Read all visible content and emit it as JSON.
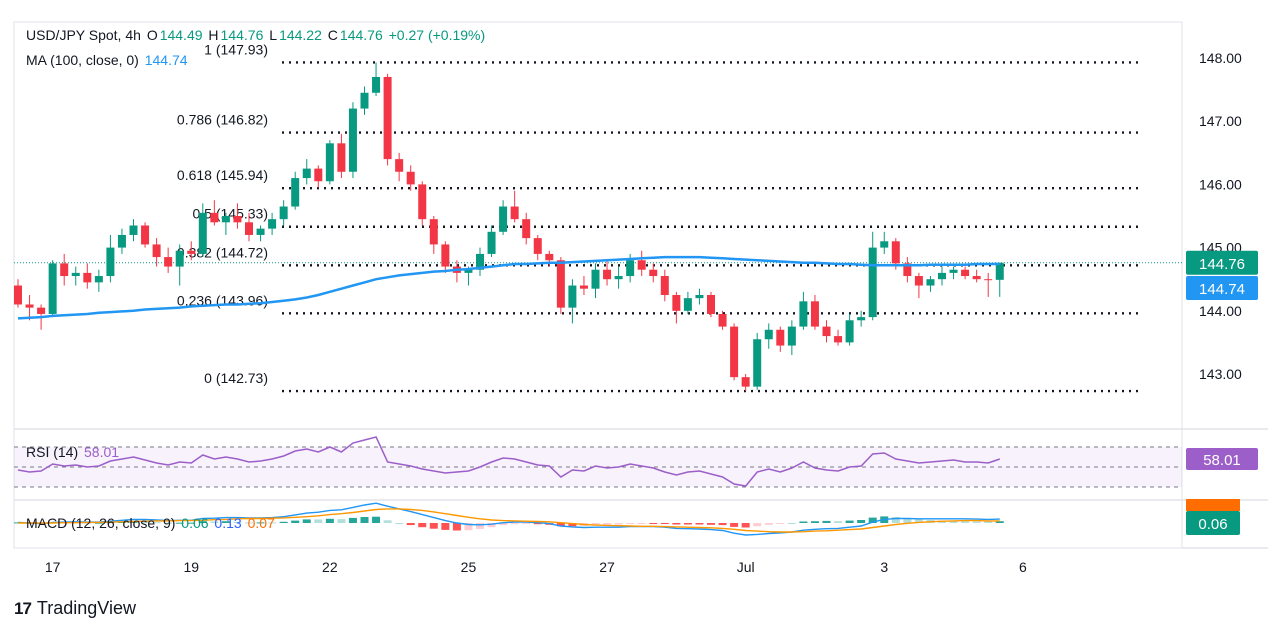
{
  "header": {
    "symbol": "USD/JPY Spot, 4h",
    "ohlc": [
      {
        "k": "O",
        "v": "144.49"
      },
      {
        "k": "H",
        "v": "144.76"
      },
      {
        "k": "L",
        "v": "144.22"
      },
      {
        "k": "C",
        "v": "144.76"
      }
    ],
    "change": "+0.27 (+0.19%)",
    "ma_label": "MA (100, close, 0)",
    "ma_value": "144.74",
    "rsi_label": "RSI (14)",
    "rsi_value": "58.01",
    "macd_label": "MACD (12, 26, close, 9)",
    "macd_values": [
      "0.06",
      "0.13",
      "0.07"
    ]
  },
  "brand": "TradingView",
  "colors": {
    "up": "#089981",
    "down": "#f23645",
    "ma": "#2196f3",
    "rsi": "#9c5fc9",
    "macd": "#2196f3",
    "signal": "#ff9800",
    "price_tag": "#089981",
    "ma_tag": "#2196f3",
    "rsi_tag": "#9c5fc9",
    "signal_tag": "#ff6d00"
  },
  "chart_data": {
    "type": "candlestick",
    "x_labels": [
      {
        "label": "17",
        "i": 3
      },
      {
        "label": "19",
        "i": 15
      },
      {
        "label": "22",
        "i": 27
      },
      {
        "label": "25",
        "i": 39
      },
      {
        "label": "27",
        "i": 51
      },
      {
        "label": "Jul",
        "i": 63
      },
      {
        "label": "3",
        "i": 75
      },
      {
        "label": "6",
        "i": 87
      }
    ],
    "y_ticks": [
      "148.00",
      "147.00",
      "146.00",
      "145.00",
      "144.00",
      "143.00"
    ],
    "ylim": [
      142.3,
      148.2
    ],
    "last_price": "144.76",
    "ma_last": "144.74",
    "fib_levels": [
      {
        "label": "1 (147.93)",
        "value": 147.93
      },
      {
        "label": "0.786 (146.82)",
        "value": 146.82
      },
      {
        "label": "0.618 (145.94)",
        "value": 145.94
      },
      {
        "label": "0.5 (145.33)",
        "value": 145.33
      },
      {
        "label": "0.382 (144.72)",
        "value": 144.72
      },
      {
        "label": "0.236 (143.96)",
        "value": 143.96
      },
      {
        "label": "0 (142.73)",
        "value": 142.73
      }
    ],
    "candles": [
      [
        144.4,
        144.5,
        144.05,
        144.1
      ],
      [
        144.1,
        144.25,
        143.85,
        144.05
      ],
      [
        144.05,
        144.1,
        143.7,
        143.95
      ],
      [
        143.95,
        144.8,
        143.9,
        144.75
      ],
      [
        144.75,
        144.9,
        144.4,
        144.55
      ],
      [
        144.55,
        144.7,
        144.4,
        144.6
      ],
      [
        144.6,
        144.75,
        144.35,
        144.45
      ],
      [
        144.45,
        144.65,
        144.3,
        144.55
      ],
      [
        144.55,
        145.2,
        144.45,
        145.0
      ],
      [
        145.0,
        145.3,
        144.9,
        145.2
      ],
      [
        145.2,
        145.45,
        145.1,
        145.35
      ],
      [
        145.35,
        145.4,
        145.0,
        145.05
      ],
      [
        145.05,
        145.15,
        144.7,
        144.85
      ],
      [
        144.85,
        145.0,
        144.6,
        144.7
      ],
      [
        144.7,
        145.05,
        144.4,
        144.95
      ],
      [
        144.95,
        145.1,
        144.8,
        144.9
      ],
      [
        144.9,
        145.7,
        144.85,
        145.55
      ],
      [
        145.55,
        145.75,
        145.35,
        145.4
      ],
      [
        145.4,
        145.55,
        145.2,
        145.5
      ],
      [
        145.5,
        145.7,
        145.3,
        145.4
      ],
      [
        145.4,
        145.55,
        145.1,
        145.2
      ],
      [
        145.2,
        145.35,
        145.1,
        145.3
      ],
      [
        145.3,
        145.55,
        145.2,
        145.45
      ],
      [
        145.45,
        145.75,
        145.35,
        145.65
      ],
      [
        145.65,
        146.2,
        145.6,
        146.1
      ],
      [
        146.1,
        146.4,
        146.0,
        146.25
      ],
      [
        146.25,
        146.3,
        145.95,
        146.05
      ],
      [
        146.05,
        146.7,
        146.0,
        146.65
      ],
      [
        146.65,
        146.8,
        146.1,
        146.2
      ],
      [
        146.2,
        147.3,
        146.1,
        147.2
      ],
      [
        147.2,
        147.55,
        147.1,
        147.45
      ],
      [
        147.45,
        147.93,
        147.4,
        147.7
      ],
      [
        147.7,
        147.75,
        146.3,
        146.4
      ],
      [
        146.4,
        146.5,
        146.05,
        146.2
      ],
      [
        146.2,
        146.3,
        145.9,
        146.0
      ],
      [
        146.0,
        146.05,
        145.35,
        145.45
      ],
      [
        145.45,
        145.5,
        144.9,
        145.05
      ],
      [
        145.05,
        145.1,
        144.6,
        144.7
      ],
      [
        144.7,
        144.8,
        144.45,
        144.6
      ],
      [
        144.6,
        144.7,
        144.4,
        144.65
      ],
      [
        144.65,
        145.0,
        144.55,
        144.9
      ],
      [
        144.9,
        145.35,
        144.85,
        145.25
      ],
      [
        145.25,
        145.75,
        145.2,
        145.65
      ],
      [
        145.65,
        145.9,
        145.4,
        145.45
      ],
      [
        145.45,
        145.55,
        145.05,
        145.15
      ],
      [
        145.15,
        145.2,
        144.8,
        144.9
      ],
      [
        144.9,
        144.95,
        144.7,
        144.8
      ],
      [
        144.8,
        144.85,
        143.95,
        144.05
      ],
      [
        144.05,
        144.5,
        143.8,
        144.4
      ],
      [
        144.4,
        144.55,
        144.25,
        144.35
      ],
      [
        144.35,
        144.75,
        144.2,
        144.65
      ],
      [
        144.65,
        144.8,
        144.4,
        144.5
      ],
      [
        144.5,
        144.7,
        144.35,
        144.55
      ],
      [
        144.55,
        144.9,
        144.45,
        144.8
      ],
      [
        144.8,
        144.95,
        144.55,
        144.65
      ],
      [
        144.65,
        144.75,
        144.45,
        144.55
      ],
      [
        144.55,
        144.65,
        144.15,
        144.25
      ],
      [
        144.25,
        144.3,
        143.8,
        144.0
      ],
      [
        144.0,
        144.3,
        143.95,
        144.2
      ],
      [
        144.2,
        144.35,
        144.1,
        144.25
      ],
      [
        144.25,
        144.3,
        143.9,
        143.95
      ],
      [
        143.95,
        144.0,
        143.7,
        143.75
      ],
      [
        143.75,
        143.8,
        142.9,
        142.95
      ],
      [
        142.95,
        143.0,
        142.73,
        142.8
      ],
      [
        142.8,
        143.65,
        142.75,
        143.55
      ],
      [
        143.55,
        143.8,
        143.4,
        143.7
      ],
      [
        143.7,
        143.75,
        143.35,
        143.45
      ],
      [
        143.45,
        143.85,
        143.3,
        143.75
      ],
      [
        143.75,
        144.3,
        143.7,
        144.15
      ],
      [
        144.15,
        144.25,
        143.7,
        143.75
      ],
      [
        143.75,
        143.85,
        143.5,
        143.6
      ],
      [
        143.6,
        143.7,
        143.45,
        143.5
      ],
      [
        143.5,
        143.95,
        143.45,
        143.85
      ],
      [
        143.85,
        144.0,
        143.75,
        143.9
      ],
      [
        143.9,
        145.25,
        143.85,
        145.0
      ],
      [
        145.0,
        145.25,
        144.9,
        145.1
      ],
      [
        145.1,
        145.15,
        144.65,
        144.75
      ],
      [
        144.75,
        144.85,
        144.45,
        144.55
      ],
      [
        144.55,
        144.6,
        144.2,
        144.4
      ],
      [
        144.4,
        144.55,
        144.3,
        144.5
      ],
      [
        144.5,
        144.7,
        144.4,
        144.6
      ],
      [
        144.6,
        144.7,
        144.5,
        144.65
      ],
      [
        144.65,
        144.7,
        144.5,
        144.55
      ],
      [
        144.55,
        144.65,
        144.45,
        144.5
      ],
      [
        144.5,
        144.6,
        144.22,
        144.49
      ],
      [
        144.49,
        144.76,
        144.22,
        144.76
      ]
    ],
    "ma": [
      143.88,
      143.89,
      143.9,
      143.92,
      143.93,
      143.94,
      143.95,
      143.97,
      143.98,
      143.99,
      144.0,
      144.02,
      144.03,
      144.04,
      144.05,
      144.07,
      144.08,
      144.09,
      144.1,
      144.1,
      144.11,
      144.12,
      144.14,
      144.16,
      144.18,
      144.21,
      144.25,
      144.3,
      144.35,
      144.4,
      144.45,
      144.5,
      144.53,
      144.56,
      144.58,
      144.6,
      144.62,
      144.63,
      144.65,
      144.66,
      144.68,
      144.7,
      144.72,
      144.74,
      144.74,
      144.75,
      144.76,
      144.76,
      144.77,
      144.78,
      144.79,
      144.8,
      144.81,
      144.82,
      144.83,
      144.84,
      144.85,
      144.85,
      144.85,
      144.85,
      144.84,
      144.83,
      144.82,
      144.81,
      144.8,
      144.79,
      144.78,
      144.77,
      144.76,
      144.76,
      144.75,
      144.74,
      144.74,
      144.73,
      144.72,
      144.72,
      144.72,
      144.72,
      144.72,
      144.73,
      144.73,
      144.73,
      144.73,
      144.74,
      144.74,
      144.74
    ],
    "rsi": [
      47,
      45,
      46,
      53,
      51,
      52,
      50,
      51,
      56,
      58,
      60,
      57,
      54,
      52,
      55,
      54,
      62,
      58,
      60,
      58,
      55,
      56,
      58,
      61,
      66,
      68,
      65,
      70,
      65,
      74,
      77,
      80,
      55,
      53,
      51,
      48,
      46,
      44,
      45,
      46,
      50,
      55,
      59,
      58,
      55,
      52,
      51,
      40,
      47,
      46,
      51,
      49,
      50,
      53,
      51,
      49,
      45,
      42,
      45,
      46,
      43,
      40,
      33,
      31,
      45,
      48,
      45,
      49,
      55,
      49,
      47,
      46,
      50,
      51,
      63,
      64,
      58,
      56,
      54,
      55,
      56,
      57,
      55,
      55,
      54,
      58.01
    ],
    "rsi_bands": [
      70,
      50,
      30
    ],
    "macd": {
      "macd": [
        0.02,
        0.0,
        -0.02,
        0.02,
        0.03,
        0.04,
        0.03,
        0.03,
        0.06,
        0.09,
        0.12,
        0.12,
        0.1,
        0.08,
        0.09,
        0.09,
        0.15,
        0.16,
        0.18,
        0.18,
        0.17,
        0.17,
        0.18,
        0.21,
        0.27,
        0.33,
        0.36,
        0.42,
        0.44,
        0.52,
        0.6,
        0.66,
        0.56,
        0.47,
        0.38,
        0.28,
        0.18,
        0.08,
        0.0,
        -0.05,
        -0.06,
        -0.04,
        0.01,
        0.03,
        0.03,
        0.01,
        -0.02,
        -0.1,
        -0.13,
        -0.15,
        -0.14,
        -0.14,
        -0.14,
        -0.12,
        -0.12,
        -0.12,
        -0.14,
        -0.18,
        -0.19,
        -0.2,
        -0.22,
        -0.25,
        -0.34,
        -0.4,
        -0.38,
        -0.35,
        -0.33,
        -0.3,
        -0.24,
        -0.21,
        -0.19,
        -0.18,
        -0.14,
        -0.1,
        0.03,
        0.12,
        0.15,
        0.15,
        0.14,
        0.14,
        0.14,
        0.14,
        0.14,
        0.13,
        0.12,
        0.13
      ],
      "signal": [
        0.0,
        0.0,
        0.0,
        0.0,
        0.01,
        0.01,
        0.02,
        0.02,
        0.03,
        0.04,
        0.05,
        0.06,
        0.07,
        0.07,
        0.08,
        0.08,
        0.09,
        0.11,
        0.12,
        0.14,
        0.15,
        0.15,
        0.16,
        0.17,
        0.19,
        0.21,
        0.24,
        0.28,
        0.31,
        0.35,
        0.4,
        0.45,
        0.47,
        0.47,
        0.45,
        0.42,
        0.37,
        0.31,
        0.25,
        0.19,
        0.14,
        0.1,
        0.08,
        0.07,
        0.06,
        0.05,
        0.04,
        0.01,
        -0.02,
        -0.05,
        -0.07,
        -0.08,
        -0.09,
        -0.1,
        -0.11,
        -0.11,
        -0.12,
        -0.13,
        -0.14,
        -0.15,
        -0.16,
        -0.18,
        -0.21,
        -0.25,
        -0.27,
        -0.29,
        -0.3,
        -0.3,
        -0.29,
        -0.27,
        -0.26,
        -0.24,
        -0.22,
        -0.2,
        -0.15,
        -0.1,
        -0.05,
        -0.01,
        0.02,
        0.04,
        0.06,
        0.07,
        0.08,
        0.08,
        0.07,
        0.07
      ]
    },
    "rsi_last": "58.01",
    "macd_last": "0.06"
  }
}
